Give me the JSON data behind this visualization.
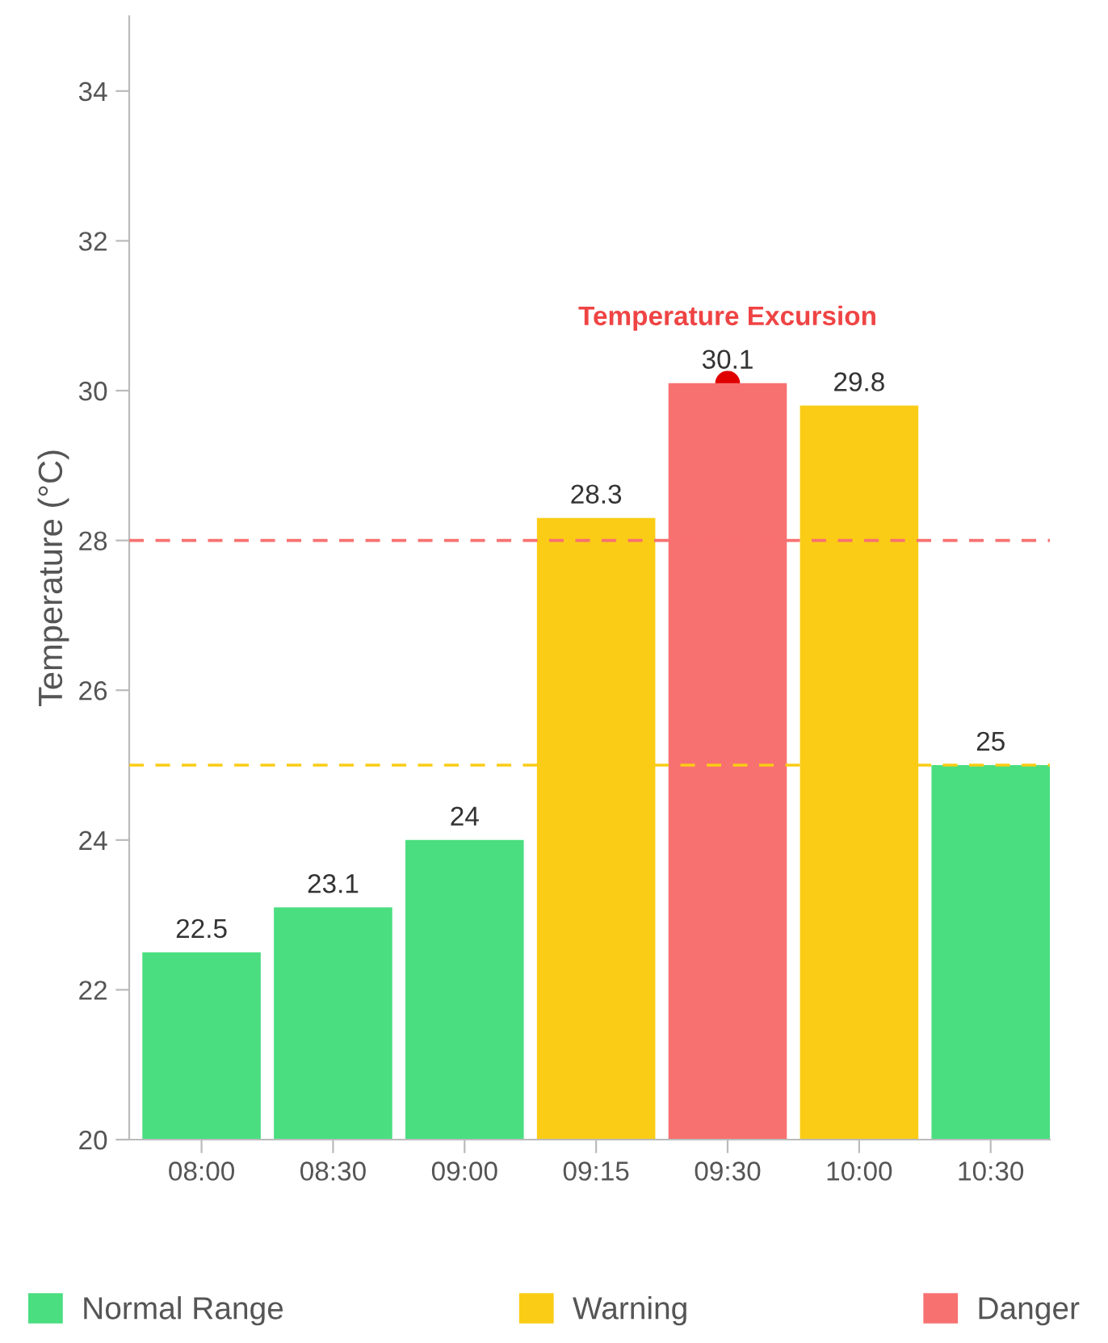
{
  "chart_data": {
    "type": "bar",
    "ylabel": "Temperature (°C)",
    "categories": [
      "08:00",
      "08:30",
      "09:00",
      "09:15",
      "09:30",
      "10:00",
      "10:30"
    ],
    "series": [
      {
        "name": "Normal Range",
        "color": "#4ade80",
        "values": [
          22.5,
          23.1,
          24,
          null,
          null,
          null,
          25
        ]
      },
      {
        "name": "Warning",
        "color": "#facc15",
        "values": [
          null,
          null,
          null,
          28.3,
          null,
          29.8,
          null
        ]
      },
      {
        "name": "Danger",
        "color": "#f87171",
        "values": [
          null,
          null,
          null,
          null,
          30.1,
          null,
          null
        ]
      }
    ],
    "ylim": [
      20,
      35
    ],
    "yticks": [
      20,
      22,
      24,
      26,
      28,
      30,
      32,
      34
    ],
    "ref_lines": [
      {
        "axis": "y",
        "value": 28,
        "color": "#f87171",
        "line_style": "dashed"
      },
      {
        "axis": "y",
        "value": 25,
        "color": "#facc15",
        "line_style": "dashed"
      }
    ],
    "annotations": [
      {
        "text": "Temperature Excursion",
        "x": "09:30",
        "y": 30.1
      }
    ],
    "data_labels": true,
    "grid": false,
    "legend": "bottom"
  }
}
